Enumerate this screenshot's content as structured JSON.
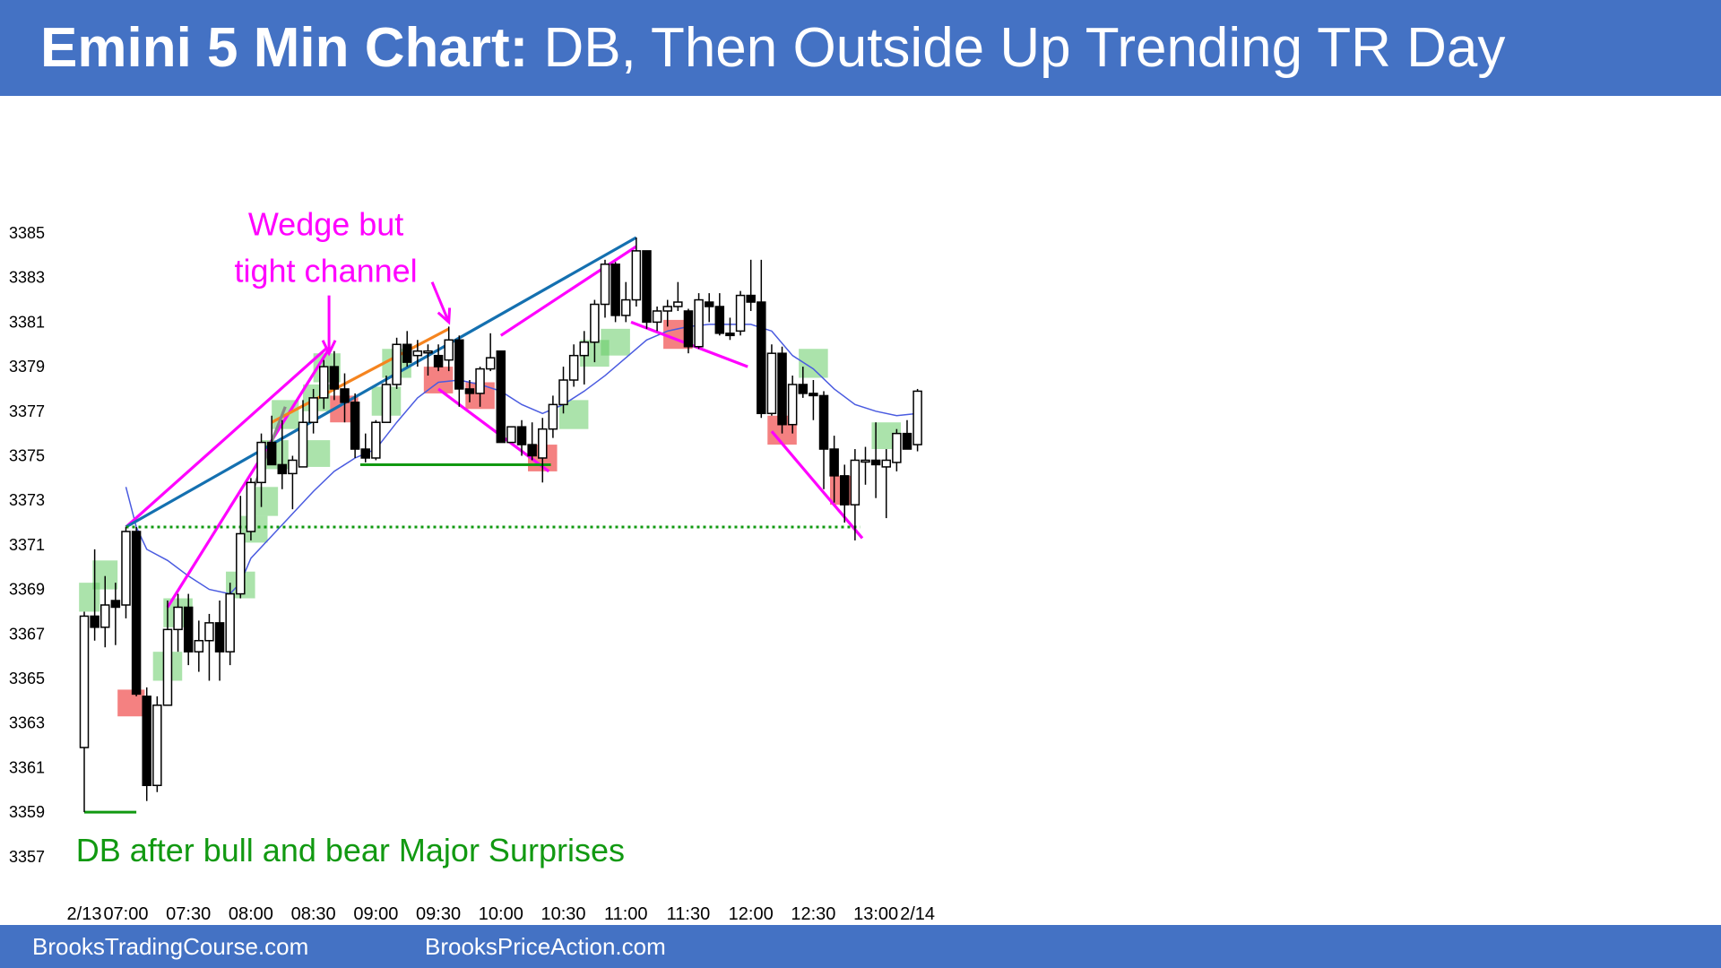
{
  "header": {
    "title_bold": "Emini 5 Min Chart:",
    "title_rest": " DB, Then Outside Up Trending TR Day"
  },
  "footer": {
    "left": "BrooksTradingCourse.com",
    "right": "BrooksPriceAction.com"
  },
  "colors": {
    "header_bg": "#4472C4",
    "bull_zone": "#66CC66",
    "bear_zone": "#EE3333",
    "magenta": "#FF00FF",
    "ema": "#4A5BE0",
    "trend_blue": "#1470B0",
    "orange": "#F5841F",
    "green": "#119911",
    "gray": "#888888"
  },
  "chart_data": {
    "type": "candlestick",
    "title": "Emini 5 Min Chart: DB, Then Outside Up Trending TR Day",
    "ylim": [
      3357,
      3386
    ],
    "y_ticks": [
      3385,
      3383,
      3381,
      3379,
      3377,
      3375,
      3373,
      3371,
      3369,
      3367,
      3365,
      3363,
      3361,
      3359,
      3357
    ],
    "x_ticks": [
      {
        "label": "2/13",
        "bar": 0
      },
      {
        "label": "07:00",
        "bar": 4
      },
      {
        "label": "07:30",
        "bar": 10
      },
      {
        "label": "08:00",
        "bar": 16
      },
      {
        "label": "08:30",
        "bar": 22
      },
      {
        "label": "09:00",
        "bar": 28
      },
      {
        "label": "09:30",
        "bar": 34
      },
      {
        "label": "10:00",
        "bar": 40
      },
      {
        "label": "10:30",
        "bar": 46
      },
      {
        "label": "11:00",
        "bar": 52
      },
      {
        "label": "11:30",
        "bar": 58
      },
      {
        "label": "12:00",
        "bar": 64
      },
      {
        "label": "12:30",
        "bar": 70
      },
      {
        "label": "13:00",
        "bar": 76
      },
      {
        "label": "2/14",
        "bar": 80
      }
    ],
    "bars": [
      {
        "o": 3361.9,
        "h": 3368,
        "l": 3359,
        "c": 3367.8
      },
      {
        "o": 3367.8,
        "h": 3370.8,
        "l": 3366.7,
        "c": 3367.3
      },
      {
        "o": 3367.3,
        "h": 3369.6,
        "l": 3366.4,
        "c": 3368.3
      },
      {
        "o": 3368.5,
        "h": 3369.3,
        "l": 3366.5,
        "c": 3368.2
      },
      {
        "o": 3368.3,
        "h": 3371.8,
        "l": 3367.7,
        "c": 3371.6
      },
      {
        "o": 3371.6,
        "h": 3371.8,
        "l": 3364.2,
        "c": 3364.3
      },
      {
        "o": 3364.2,
        "h": 3364.6,
        "l": 3359.5,
        "c": 3360.2
      },
      {
        "o": 3360.2,
        "h": 3364.2,
        "l": 3359.9,
        "c": 3363.8
      },
      {
        "o": 3363.8,
        "h": 3368.5,
        "l": 3363.8,
        "c": 3367.2
      },
      {
        "o": 3367.2,
        "h": 3368.8,
        "l": 3366.2,
        "c": 3368.2
      },
      {
        "o": 3368.2,
        "h": 3368.8,
        "l": 3365.6,
        "c": 3366.2
      },
      {
        "o": 3366.2,
        "h": 3367.6,
        "l": 3365.3,
        "c": 3366.7
      },
      {
        "o": 3366.7,
        "h": 3367.9,
        "l": 3364.9,
        "c": 3367.5
      },
      {
        "o": 3367.5,
        "h": 3368.5,
        "l": 3364.9,
        "c": 3366.2
      },
      {
        "o": 3366.2,
        "h": 3369.3,
        "l": 3365.6,
        "c": 3368.8
      },
      {
        "o": 3368.8,
        "h": 3373.2,
        "l": 3368.6,
        "c": 3371.5
      },
      {
        "o": 3371.6,
        "h": 3374.0,
        "l": 3371.2,
        "c": 3373.8
      },
      {
        "o": 3373.8,
        "h": 3376.0,
        "l": 3372.7,
        "c": 3375.6
      },
      {
        "o": 3375.6,
        "h": 3376.8,
        "l": 3374.6,
        "c": 3374.6
      },
      {
        "o": 3374.6,
        "h": 3376.6,
        "l": 3373.5,
        "c": 3374.2
      },
      {
        "o": 3374.2,
        "h": 3375.0,
        "l": 3372.6,
        "c": 3374.8
      },
      {
        "o": 3374.5,
        "h": 3377.5,
        "l": 3374.5,
        "c": 3376.5
      },
      {
        "o": 3376.5,
        "h": 3378.0,
        "l": 3376.0,
        "c": 3377.6
      },
      {
        "o": 3377.6,
        "h": 3379.3,
        "l": 3377.1,
        "c": 3379.0
      },
      {
        "o": 3379.0,
        "h": 3379.7,
        "l": 3377.5,
        "c": 3378.0
      },
      {
        "o": 3378.0,
        "h": 3378.7,
        "l": 3376.5,
        "c": 3377.4
      },
      {
        "o": 3377.4,
        "h": 3377.8,
        "l": 3374.9,
        "c": 3375.3
      },
      {
        "o": 3375.3,
        "h": 3376.0,
        "l": 3374.7,
        "c": 3374.9
      },
      {
        "o": 3374.9,
        "h": 3376.6,
        "l": 3374.8,
        "c": 3376.5
      },
      {
        "o": 3376.5,
        "h": 3378.6,
        "l": 3376.5,
        "c": 3378.2
      },
      {
        "o": 3378.2,
        "h": 3380.3,
        "l": 3378.0,
        "c": 3380.0
      },
      {
        "o": 3380.0,
        "h": 3380.6,
        "l": 3379.0,
        "c": 3379.2
      },
      {
        "o": 3379.5,
        "h": 3380.2,
        "l": 3379.0,
        "c": 3379.7
      },
      {
        "o": 3379.7,
        "h": 3380.0,
        "l": 3378.6,
        "c": 3379.7
      },
      {
        "o": 3379.5,
        "h": 3380.0,
        "l": 3378.8,
        "c": 3379.0
      },
      {
        "o": 3379.3,
        "h": 3380.8,
        "l": 3378.8,
        "c": 3380.2
      },
      {
        "o": 3380.2,
        "h": 3380.4,
        "l": 3377.2,
        "c": 3378.0
      },
      {
        "o": 3378.0,
        "h": 3378.4,
        "l": 3377.4,
        "c": 3377.8
      },
      {
        "o": 3377.8,
        "h": 3379.0,
        "l": 3377.2,
        "c": 3378.9
      },
      {
        "o": 3378.9,
        "h": 3380.5,
        "l": 3378.8,
        "c": 3379.4
      },
      {
        "o": 3379.7,
        "h": 3379.7,
        "l": 3375.6,
        "c": 3375.6
      },
      {
        "o": 3375.6,
        "h": 3376.3,
        "l": 3375.6,
        "c": 3376.3
      },
      {
        "o": 3376.3,
        "h": 3376.6,
        "l": 3375.0,
        "c": 3375.5
      },
      {
        "o": 3375.5,
        "h": 3376.5,
        "l": 3374.8,
        "c": 3375.0
      },
      {
        "o": 3374.9,
        "h": 3376.7,
        "l": 3373.8,
        "c": 3376.2
      },
      {
        "o": 3376.2,
        "h": 3377.7,
        "l": 3375.8,
        "c": 3377.3
      },
      {
        "o": 3377.3,
        "h": 3379.0,
        "l": 3376.9,
        "c": 3378.4
      },
      {
        "o": 3378.4,
        "h": 3380.0,
        "l": 3378.1,
        "c": 3379.5
      },
      {
        "o": 3379.5,
        "h": 3380.6,
        "l": 3378.2,
        "c": 3380.1
      },
      {
        "o": 3380.1,
        "h": 3382.0,
        "l": 3379.2,
        "c": 3381.8
      },
      {
        "o": 3381.8,
        "h": 3383.8,
        "l": 3381.2,
        "c": 3383.6
      },
      {
        "o": 3383.6,
        "h": 3383.7,
        "l": 3381.0,
        "c": 3381.3
      },
      {
        "o": 3381.3,
        "h": 3382.8,
        "l": 3381.0,
        "c": 3382.0
      },
      {
        "o": 3382.0,
        "h": 3384.8,
        "l": 3381.7,
        "c": 3384.2
      },
      {
        "o": 3384.2,
        "h": 3384.2,
        "l": 3380.7,
        "c": 3381.0
      },
      {
        "o": 3381.0,
        "h": 3381.7,
        "l": 3380.6,
        "c": 3381.5
      },
      {
        "o": 3381.5,
        "h": 3382.0,
        "l": 3380.8,
        "c": 3381.7
      },
      {
        "o": 3381.7,
        "h": 3382.8,
        "l": 3381.5,
        "c": 3381.9
      },
      {
        "o": 3381.5,
        "h": 3381.6,
        "l": 3379.6,
        "c": 3379.9
      },
      {
        "o": 3379.9,
        "h": 3382.3,
        "l": 3379.8,
        "c": 3382.0
      },
      {
        "o": 3381.9,
        "h": 3382.3,
        "l": 3381.0,
        "c": 3381.7
      },
      {
        "o": 3381.7,
        "h": 3382.3,
        "l": 3380.4,
        "c": 3380.5
      },
      {
        "o": 3380.5,
        "h": 3381.2,
        "l": 3380.2,
        "c": 3380.4
      },
      {
        "o": 3380.6,
        "h": 3382.4,
        "l": 3380.4,
        "c": 3382.2
      },
      {
        "o": 3382.2,
        "h": 3383.8,
        "l": 3381.5,
        "c": 3381.9
      },
      {
        "o": 3381.9,
        "h": 3383.8,
        "l": 3376.7,
        "c": 3376.9
      },
      {
        "o": 3376.9,
        "h": 3380.0,
        "l": 3376.8,
        "c": 3379.6
      },
      {
        "o": 3379.6,
        "h": 3379.9,
        "l": 3376.0,
        "c": 3376.4
      },
      {
        "o": 3376.4,
        "h": 3378.6,
        "l": 3376.0,
        "c": 3378.2
      },
      {
        "o": 3378.2,
        "h": 3379.0,
        "l": 3377.6,
        "c": 3377.8
      },
      {
        "o": 3377.8,
        "h": 3378.4,
        "l": 3376.6,
        "c": 3377.7
      },
      {
        "o": 3377.7,
        "h": 3377.9,
        "l": 3373.5,
        "c": 3375.3
      },
      {
        "o": 3375.3,
        "h": 3375.9,
        "l": 3372.9,
        "c": 3374.1
      },
      {
        "o": 3374.1,
        "h": 3374.6,
        "l": 3372.0,
        "c": 3372.8
      },
      {
        "o": 3372.8,
        "h": 3375.3,
        "l": 3371.2,
        "c": 3374.8
      },
      {
        "o": 3374.8,
        "h": 3375.4,
        "l": 3373.7,
        "c": 3374.8
      },
      {
        "o": 3374.8,
        "h": 3376.5,
        "l": 3373.1,
        "c": 3374.6
      },
      {
        "o": 3374.5,
        "h": 3375.3,
        "l": 3372.2,
        "c": 3374.8
      },
      {
        "o": 3374.7,
        "h": 3376.2,
        "l": 3374.3,
        "c": 3376.0
      },
      {
        "o": 3376.0,
        "h": 3376.6,
        "l": 3375.3,
        "c": 3375.3
      },
      {
        "o": 3375.5,
        "h": 3378.0,
        "l": 3375.2,
        "c": 3377.9
      }
    ],
    "ema": [
      [
        4,
        3373.6
      ],
      [
        5,
        3371.8
      ],
      [
        6,
        3370.8
      ],
      [
        8,
        3370.3
      ],
      [
        10,
        3369.6
      ],
      [
        12,
        3369.0
      ],
      [
        14,
        3368.8
      ],
      [
        15,
        3369.3
      ],
      [
        16,
        3370.4
      ],
      [
        18,
        3371.4
      ],
      [
        20,
        3372.4
      ],
      [
        22,
        3373.4
      ],
      [
        24,
        3374.3
      ],
      [
        26,
        3374.9
      ],
      [
        28,
        3375.3
      ],
      [
        30,
        3376.5
      ],
      [
        32,
        3377.6
      ],
      [
        34,
        3378.3
      ],
      [
        36,
        3378.4
      ],
      [
        38,
        3378.2
      ],
      [
        40,
        3377.9
      ],
      [
        42,
        3377.3
      ],
      [
        44,
        3376.9
      ],
      [
        46,
        3377.3
      ],
      [
        48,
        3377.9
      ],
      [
        50,
        3378.6
      ],
      [
        52,
        3379.4
      ],
      [
        54,
        3380.2
      ],
      [
        56,
        3380.6
      ],
      [
        58,
        3380.8
      ],
      [
        60,
        3380.9
      ],
      [
        62,
        3380.9
      ],
      [
        64,
        3380.9
      ],
      [
        66,
        3380.6
      ],
      [
        68,
        3379.5
      ],
      [
        70,
        3378.9
      ],
      [
        72,
        3378.0
      ],
      [
        74,
        3377.3
      ],
      [
        76,
        3377.0
      ],
      [
        78,
        3376.8
      ],
      [
        80,
        3376.9
      ]
    ],
    "zones": [
      {
        "kind": "bull",
        "b0": -0.5,
        "b1": 1.5,
        "y0": 3368.0,
        "y1": 3369.3
      },
      {
        "kind": "bull",
        "b0": 0.8,
        "b1": 3.2,
        "y0": 3369.0,
        "y1": 3370.3
      },
      {
        "kind": "bull",
        "b0": 6.6,
        "b1": 9.4,
        "y0": 3364.9,
        "y1": 3366.2
      },
      {
        "kind": "bull",
        "b0": 7.6,
        "b1": 10.4,
        "y0": 3367.3,
        "y1": 3368.6
      },
      {
        "kind": "bull",
        "b0": 13.6,
        "b1": 16.4,
        "y0": 3368.6,
        "y1": 3369.8
      },
      {
        "kind": "bull",
        "b0": 15.0,
        "b1": 17.6,
        "y0": 3371.1,
        "y1": 3372.3
      },
      {
        "kind": "bull",
        "b0": 16.0,
        "b1": 18.6,
        "y0": 3372.3,
        "y1": 3373.6
      },
      {
        "kind": "bull",
        "b0": 17.0,
        "b1": 19.6,
        "y0": 3374.4,
        "y1": 3375.7
      },
      {
        "kind": "bull",
        "b0": 18.0,
        "b1": 20.6,
        "y0": 3376.2,
        "y1": 3377.5
      },
      {
        "kind": "bull",
        "b0": 21.0,
        "b1": 23.6,
        "y0": 3377.0,
        "y1": 3378.2
      },
      {
        "kind": "bull",
        "b0": 22.0,
        "b1": 24.6,
        "y0": 3378.3,
        "y1": 3379.6
      },
      {
        "kind": "bull",
        "b0": 21.0,
        "b1": 23.6,
        "y0": 3374.5,
        "y1": 3375.7
      },
      {
        "kind": "bull",
        "b0": 27.6,
        "b1": 30.4,
        "y0": 3376.8,
        "y1": 3378.1
      },
      {
        "kind": "bull",
        "b0": 28.6,
        "b1": 31.4,
        "y0": 3378.5,
        "y1": 3379.8
      },
      {
        "kind": "bull",
        "b0": 45.6,
        "b1": 48.4,
        "y0": 3376.2,
        "y1": 3377.5
      },
      {
        "kind": "bull",
        "b0": 47.6,
        "b1": 50.4,
        "y0": 3379.0,
        "y1": 3380.2
      },
      {
        "kind": "bull",
        "b0": 49.6,
        "b1": 52.4,
        "y0": 3379.5,
        "y1": 3380.7
      },
      {
        "kind": "bull",
        "b0": 68.6,
        "b1": 71.4,
        "y0": 3378.5,
        "y1": 3379.8
      },
      {
        "kind": "bull",
        "b0": 75.6,
        "b1": 78.4,
        "y0": 3375.3,
        "y1": 3376.5
      },
      {
        "kind": "bear",
        "b0": 3.2,
        "b1": 5.8,
        "y0": 3363.3,
        "y1": 3364.5
      },
      {
        "kind": "bear",
        "b0": 23.6,
        "b1": 26.3,
        "y0": 3376.5,
        "y1": 3377.7
      },
      {
        "kind": "bear",
        "b0": 32.6,
        "b1": 35.4,
        "y0": 3377.8,
        "y1": 3379.0
      },
      {
        "kind": "bear",
        "b0": 36.6,
        "b1": 39.4,
        "y0": 3377.1,
        "y1": 3378.3
      },
      {
        "kind": "bear",
        "b0": 42.6,
        "b1": 45.4,
        "y0": 3374.3,
        "y1": 3375.5
      },
      {
        "kind": "bear",
        "b0": 55.6,
        "b1": 58.4,
        "y0": 3379.8,
        "y1": 3381.1
      },
      {
        "kind": "bear",
        "b0": 65.6,
        "b1": 68.4,
        "y0": 3375.5,
        "y1": 3376.8
      },
      {
        "kind": "bear",
        "b0": 71.6,
        "b1": 74.4,
        "y0": 3372.8,
        "y1": 3374.1
      }
    ],
    "lines": [
      {
        "kind": "magenta",
        "b0": 4,
        "y0": 3371.8,
        "b1": 23.2,
        "y1": 3379.8
      },
      {
        "kind": "magenta",
        "b0": 8,
        "y0": 3368.2,
        "b1": 23.5,
        "y1": 3379.8
      },
      {
        "kind": "magenta",
        "b0": 40,
        "y0": 3380.4,
        "b1": 53,
        "y1": 3384.4
      },
      {
        "kind": "magenta",
        "b0": 34,
        "y0": 3378.0,
        "b1": 44.6,
        "y1": 3374.3
      },
      {
        "kind": "magenta",
        "b0": 52.5,
        "y0": 3381.0,
        "b1": 63.7,
        "y1": 3379.0
      },
      {
        "kind": "magenta",
        "b0": 66,
        "y0": 3376.1,
        "b1": 74.7,
        "y1": 3371.3
      },
      {
        "kind": "blue",
        "b0": 4,
        "y0": 3371.8,
        "b1": 53,
        "y1": 3384.8
      },
      {
        "kind": "orange",
        "b0": 18,
        "y0": 3376.5,
        "b1": 35,
        "y1": 3380.7
      },
      {
        "kind": "gray",
        "b0": 15.8,
        "y0": 3373.0,
        "b1": 19.3,
        "y1": 3377.2
      },
      {
        "kind": "green",
        "b0": 0,
        "y0": 3359.0,
        "b1": 5,
        "y1": 3359.0
      },
      {
        "kind": "green",
        "b0": 26.5,
        "y0": 3374.6,
        "b1": 44.8,
        "y1": 3374.6
      },
      {
        "kind": "dotted",
        "b0": 4,
        "y0": 3371.8,
        "b1": 74.5,
        "y1": 3371.8
      }
    ],
    "arrows": [
      {
        "x0": 23.5,
        "y0": 3382.2,
        "x1": 23.5,
        "y1": 3379.6
      },
      {
        "x0": 33.4,
        "y0": 3382.8,
        "x1": 35.0,
        "y1": 3381.0
      }
    ],
    "annotations": [
      {
        "text": "Wedge but",
        "b": 23.2,
        "y": 3384.9,
        "color": "magenta",
        "anchor": "middle"
      },
      {
        "text": "tight channel",
        "b": 23.2,
        "y": 3382.8,
        "color": "magenta",
        "anchor": "middle"
      },
      {
        "text": "DB after bull and bear Major Surprises",
        "b": -0.8,
        "y": 3356.8,
        "color": "green",
        "anchor": "start"
      }
    ]
  }
}
